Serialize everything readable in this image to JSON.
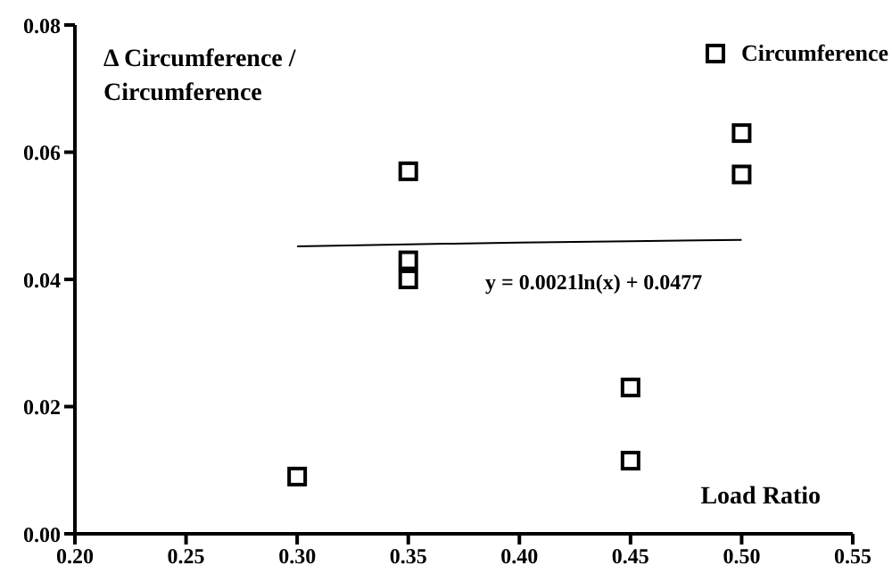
{
  "chart_data": {
    "type": "scatter",
    "xlabel": "Load Ratio",
    "ylabel": "Δ Circumference / Circumference",
    "legend": "top right",
    "marker": "square",
    "grid": false,
    "annotations": [
      "y = 0.0021ln(x) + 0.0477"
    ],
    "xlim": [
      0.2,
      0.55
    ],
    "ylim": [
      0,
      0.08
    ],
    "xticks": [
      {
        "value": 0.2,
        "label": "0.20"
      },
      {
        "value": 0.25,
        "label": "0.25"
      },
      {
        "value": 0.3,
        "label": "0.30"
      },
      {
        "value": 0.35,
        "label": "0.35"
      },
      {
        "value": 0.4,
        "label": "0.40"
      },
      {
        "value": 0.45,
        "label": "0.45"
      },
      {
        "value": 0.5,
        "label": "0.50"
      },
      {
        "value": 0.55,
        "label": "0.55"
      }
    ],
    "yticks": [
      {
        "value": 0,
        "label": "0.00"
      },
      {
        "value": 0.02,
        "label": "0.02"
      },
      {
        "value": 0.04,
        "label": "0.04"
      },
      {
        "value": 0.06,
        "label": "0.06"
      },
      {
        "value": 0.08,
        "label": "0.08"
      }
    ],
    "series": [
      {
        "name": "Circumference",
        "color": "#000000",
        "x": [
          0.3,
          0.35,
          0.35,
          0.35,
          0.45,
          0.45,
          0.5,
          0.5
        ],
        "values": [
          0.009,
          0.057,
          0.043,
          0.04,
          0.023,
          0.0115,
          0.063,
          0.0565
        ]
      },
      {
        "type": "line",
        "color": "#000000",
        "marker": "none",
        "x": [
          0.3,
          0.35,
          0.4,
          0.45,
          0.5
        ],
        "values": [
          0.0452,
          0.0455,
          0.0458,
          0.046,
          0.0462
        ]
      }
    ]
  }
}
